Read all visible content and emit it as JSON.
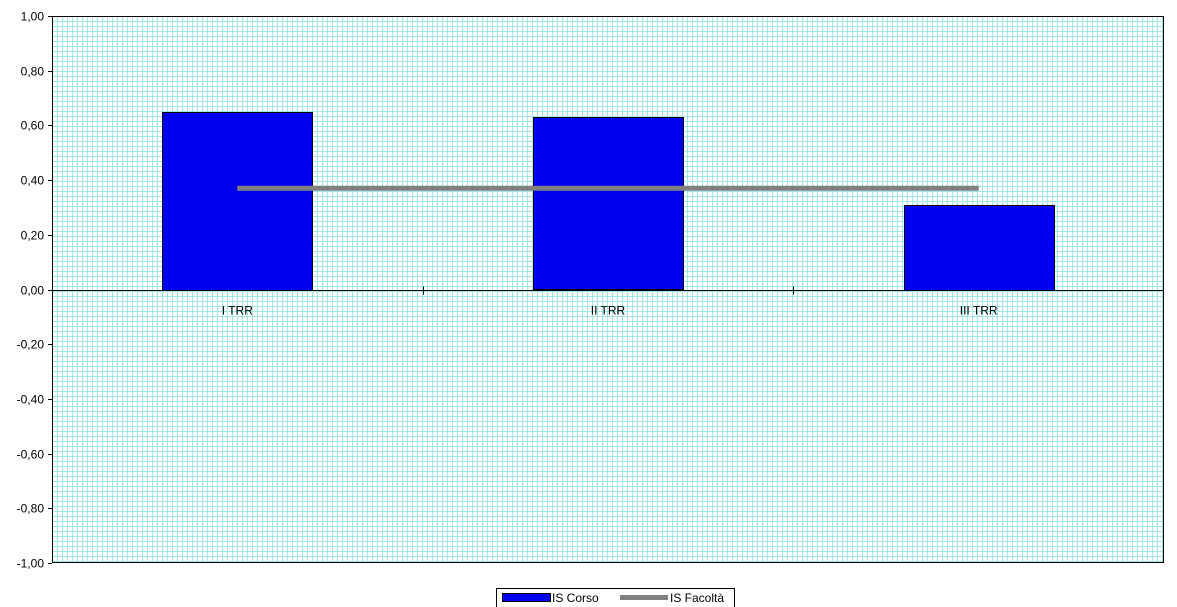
{
  "chart_data": {
    "type": "bar",
    "categories": [
      "I TRR",
      "II TRR",
      "III TRR"
    ],
    "series": [
      {
        "name": "IS Corso",
        "kind": "bar",
        "color": "#0000ee",
        "values": [
          0.65,
          0.63,
          0.31
        ]
      },
      {
        "name": "IS Facoltà",
        "kind": "line",
        "color": "#808080",
        "values": [
          0.37,
          0.37,
          0.37
        ]
      }
    ],
    "ylim": [
      -1.0,
      1.0
    ],
    "yticks": [
      "1,00",
      "0,80",
      "0,60",
      "0,40",
      "0,20",
      "0,00",
      "-0,20",
      "-0,40",
      "-0,60",
      "-0,80",
      "-1,00"
    ],
    "ytick_values": [
      1.0,
      0.8,
      0.6,
      0.4,
      0.2,
      0.0,
      -0.2,
      -0.4,
      -0.6,
      -0.8,
      -1.0
    ],
    "grid": true,
    "grid_color": "#a0e6e6",
    "legend_position": "bottom-center"
  }
}
